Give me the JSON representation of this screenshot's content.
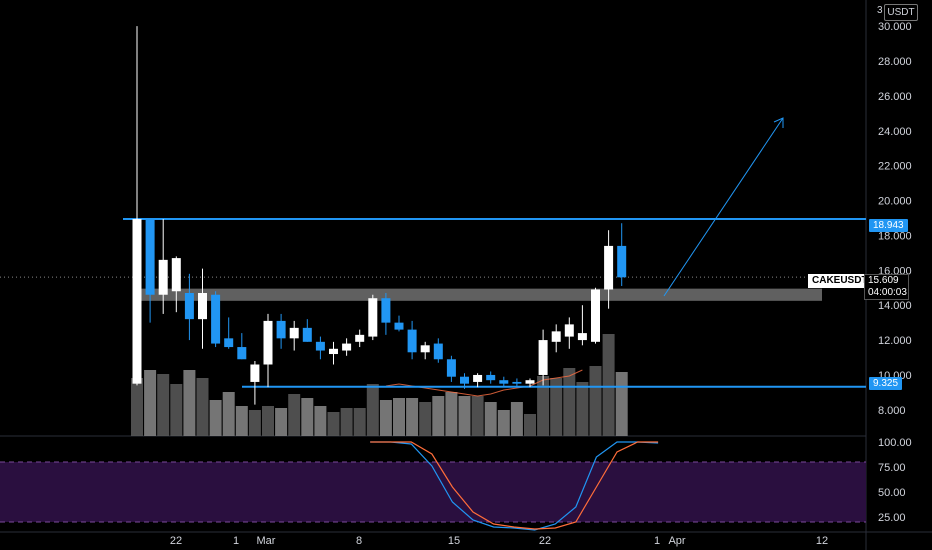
{
  "chart_data": {
    "type": "candlestick",
    "symbol": "CAKEUSDT",
    "currency": "USDT",
    "last_price": "15.609",
    "countdown": "04:00:03",
    "price_axis": {
      "ticks": [
        "8.000",
        "10.000",
        "12.000",
        "14.000",
        "16.000",
        "18.000",
        "20.000",
        "22.000",
        "24.000",
        "26.000",
        "28.000",
        "30.000"
      ],
      "ylim": [
        6.5,
        31.5
      ],
      "cut_label": "3"
    },
    "time_axis": {
      "labels": [
        "22",
        "1",
        "Mar",
        "8",
        "15",
        "22",
        "1",
        "Apr",
        "12"
      ]
    },
    "levels": {
      "resistance": "18.943",
      "support": "9.325"
    },
    "candles": [
      {
        "o": 9.5,
        "h": 30.0,
        "l": 9.4,
        "c": 18.94
      },
      {
        "o": 18.94,
        "h": 18.94,
        "l": 13.0,
        "c": 14.6
      },
      {
        "o": 14.6,
        "h": 18.94,
        "l": 13.5,
        "c": 16.6
      },
      {
        "o": 14.8,
        "h": 16.8,
        "l": 13.6,
        "c": 16.7
      },
      {
        "o": 14.7,
        "h": 15.8,
        "l": 12.0,
        "c": 13.2
      },
      {
        "o": 13.2,
        "h": 16.1,
        "l": 11.5,
        "c": 14.7
      },
      {
        "o": 14.6,
        "h": 14.8,
        "l": 11.6,
        "c": 11.8
      },
      {
        "o": 12.1,
        "h": 13.3,
        "l": 11.5,
        "c": 11.6
      },
      {
        "o": 11.6,
        "h": 12.4,
        "l": 10.9,
        "c": 10.9
      },
      {
        "o": 9.6,
        "h": 10.8,
        "l": 8.3,
        "c": 10.6
      },
      {
        "o": 10.6,
        "h": 13.5,
        "l": 9.3,
        "c": 13.1
      },
      {
        "o": 13.1,
        "h": 13.5,
        "l": 11.5,
        "c": 12.1
      },
      {
        "o": 12.1,
        "h": 13.1,
        "l": 11.4,
        "c": 12.7
      },
      {
        "o": 12.7,
        "h": 13.2,
        "l": 11.9,
        "c": 11.9
      },
      {
        "o": 11.9,
        "h": 12.2,
        "l": 10.9,
        "c": 11.4
      },
      {
        "o": 11.2,
        "h": 11.9,
        "l": 10.6,
        "c": 11.5
      },
      {
        "o": 11.4,
        "h": 12.1,
        "l": 11.1,
        "c": 11.8
      },
      {
        "o": 11.9,
        "h": 12.6,
        "l": 11.6,
        "c": 12.3
      },
      {
        "o": 12.2,
        "h": 14.6,
        "l": 12.0,
        "c": 14.4
      },
      {
        "o": 14.4,
        "h": 14.7,
        "l": 12.3,
        "c": 13.0
      },
      {
        "o": 13.0,
        "h": 13.4,
        "l": 12.5,
        "c": 12.6
      },
      {
        "o": 12.6,
        "h": 13.1,
        "l": 10.9,
        "c": 11.3
      },
      {
        "o": 11.3,
        "h": 11.9,
        "l": 10.9,
        "c": 11.7
      },
      {
        "o": 11.8,
        "h": 12.1,
        "l": 10.7,
        "c": 10.9
      },
      {
        "o": 10.9,
        "h": 11.1,
        "l": 9.6,
        "c": 9.9
      },
      {
        "o": 9.9,
        "h": 10.1,
        "l": 9.2,
        "c": 9.5
      },
      {
        "o": 9.6,
        "h": 10.1,
        "l": 9.3,
        "c": 10.0
      },
      {
        "o": 10.0,
        "h": 10.2,
        "l": 9.5,
        "c": 9.7
      },
      {
        "o": 9.7,
        "h": 9.9,
        "l": 9.3,
        "c": 9.5
      },
      {
        "o": 9.6,
        "h": 9.8,
        "l": 9.3,
        "c": 9.5
      },
      {
        "o": 9.5,
        "h": 9.8,
        "l": 9.3,
        "c": 9.7
      },
      {
        "o": 10.0,
        "h": 12.6,
        "l": 9.4,
        "c": 12.0
      },
      {
        "o": 11.9,
        "h": 12.9,
        "l": 11.3,
        "c": 12.5
      },
      {
        "o": 12.2,
        "h": 13.3,
        "l": 11.5,
        "c": 12.9
      },
      {
        "o": 12.0,
        "h": 14.0,
        "l": 11.7,
        "c": 12.4
      },
      {
        "o": 11.9,
        "h": 15.0,
        "l": 11.8,
        "c": 14.9
      },
      {
        "o": 14.9,
        "h": 18.3,
        "l": 13.8,
        "c": 17.4
      },
      {
        "o": 17.4,
        "h": 18.7,
        "l": 15.1,
        "c": 15.6
      }
    ],
    "volume": [
      0.29,
      0.33,
      0.31,
      0.26,
      0.33,
      0.29,
      0.18,
      0.22,
      0.15,
      0.13,
      0.15,
      0.14,
      0.21,
      0.19,
      0.15,
      0.12,
      0.14,
      0.14,
      0.26,
      0.18,
      0.19,
      0.19,
      0.17,
      0.2,
      0.22,
      0.2,
      0.2,
      0.17,
      0.13,
      0.17,
      0.11,
      0.3,
      0.29,
      0.34,
      0.27,
      0.35,
      0.51,
      0.32
    ],
    "volume_ma": [
      0.25,
      0.26,
      0.25,
      0.24,
      0.23,
      0.22,
      0.21,
      0.2,
      0.21,
      0.23,
      0.24,
      0.25,
      0.28,
      0.29,
      0.3,
      0.33
    ],
    "oscillator": {
      "ticks": [
        "25.00",
        "50.00",
        "75.00",
        "100.00"
      ],
      "ylim": [
        10,
        105
      ],
      "bands": [
        20,
        80
      ],
      "k": [
        100,
        100,
        98,
        76,
        40,
        22,
        15,
        14,
        12,
        18,
        35,
        85,
        100,
        100,
        99
      ],
      "d": [
        100,
        100,
        100,
        88,
        55,
        30,
        18,
        15,
        13,
        14,
        20,
        55,
        90,
        100,
        100
      ]
    }
  }
}
